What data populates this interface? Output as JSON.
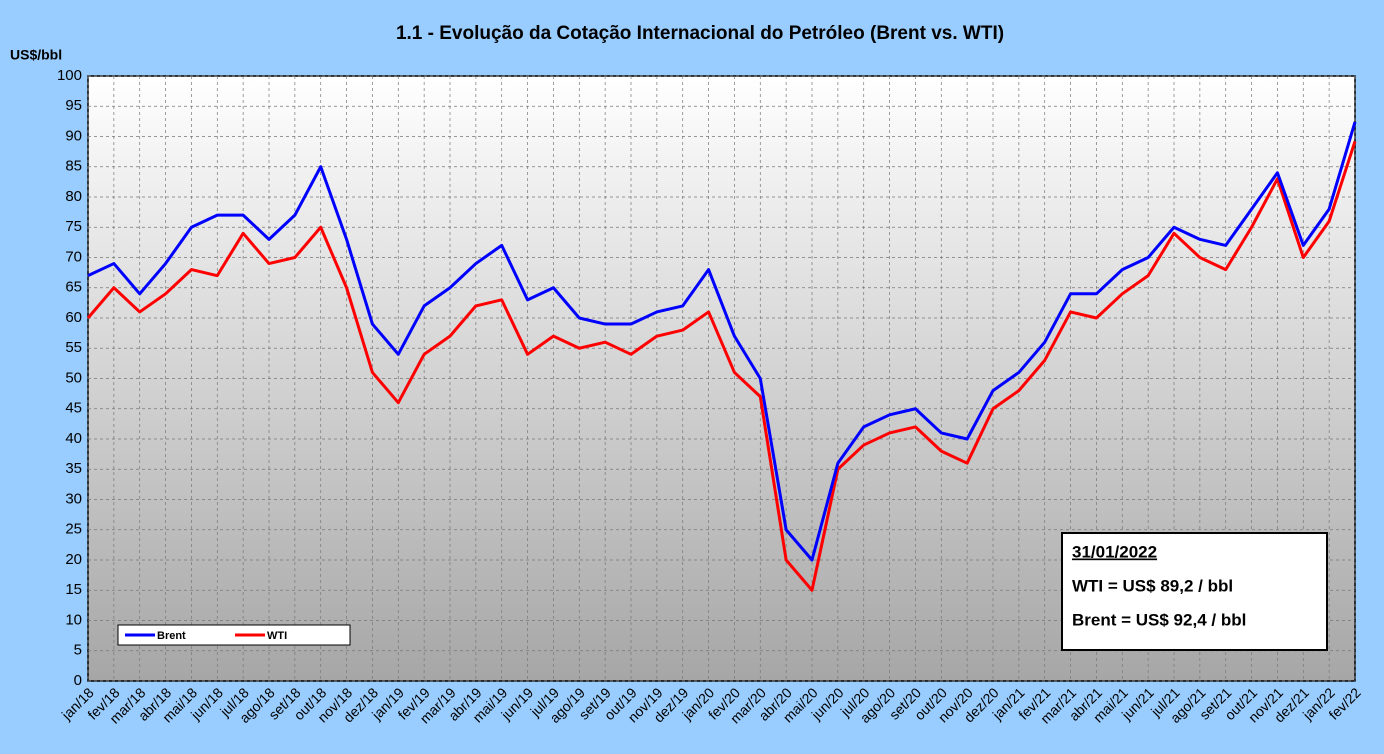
{
  "chart_data": {
    "type": "line",
    "title": "1.1 - Evolução da Cotação Internacional do Petróleo (Brent vs. WTI)",
    "y_label": "US$/bbl",
    "categories": [
      "jan/18",
      "fev/18",
      "mar/18",
      "abr/18",
      "mai/18",
      "jun/18",
      "jul/18",
      "ago/18",
      "set/18",
      "out/18",
      "nov/18",
      "dez/18",
      "jan/19",
      "fev/19",
      "mar/19",
      "abr/19",
      "mai/19",
      "jun/19",
      "jul/19",
      "ago/19",
      "set/19",
      "out/19",
      "nov/19",
      "dez/19",
      "jan/20",
      "fev/20",
      "mar/20",
      "abr/20",
      "mai/20",
      "jun/20",
      "jul/20",
      "ago/20",
      "set/20",
      "out/20",
      "nov/20",
      "dez/20",
      "jan/21",
      "fev/21",
      "mar/21",
      "abr/21",
      "mai/21",
      "jun/21",
      "jul/21",
      "ago/21",
      "set/21",
      "out/21",
      "nov/21",
      "dez/21",
      "jan/22",
      "fev/22"
    ],
    "series": [
      {
        "name": "Brent",
        "color": "#0000ff",
        "values": [
          67,
          69,
          64,
          69,
          75,
          77,
          77,
          73,
          77,
          85,
          73,
          59,
          54,
          62,
          65,
          69,
          72,
          63,
          65,
          60,
          59,
          59,
          61,
          62,
          68,
          57,
          50,
          25,
          20,
          36,
          42,
          44,
          45,
          41,
          40,
          48,
          51,
          56,
          64,
          64,
          68,
          70,
          75,
          73,
          72,
          78,
          84,
          72,
          78,
          92.4
        ]
      },
      {
        "name": "WTI",
        "color": "#ff0000",
        "values": [
          60,
          65,
          61,
          64,
          68,
          67,
          74,
          69,
          70,
          75,
          65,
          51,
          46,
          54,
          57,
          62,
          63,
          54,
          57,
          55,
          56,
          54,
          57,
          58,
          61,
          51,
          47,
          20,
          15,
          35,
          39,
          41,
          42,
          38,
          36,
          45,
          48,
          53,
          61,
          60,
          64,
          67,
          74,
          70,
          68,
          75,
          83,
          70,
          76,
          89.2
        ]
      }
    ],
    "ylim": [
      0,
      100
    ],
    "yticks": [
      0,
      5,
      10,
      15,
      20,
      25,
      30,
      35,
      40,
      45,
      50,
      55,
      60,
      65,
      70,
      75,
      80,
      85,
      90,
      95,
      100
    ],
    "grid": true,
    "annotation": {
      "date": "31/01/2022",
      "lines": [
        "WTI = US$ 89,2 / bbl",
        "Brent = US$ 92,4 / bbl"
      ]
    }
  }
}
